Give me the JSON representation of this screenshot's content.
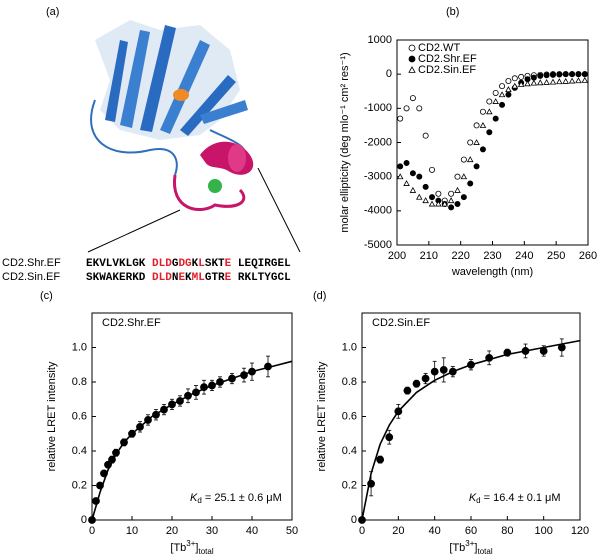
{
  "panel_a": {
    "panel": "(a)",
    "sequences": [
      {
        "name": "CD2.Shr.EF",
        "segments": [
          {
            "text": "EKVLVKLGK ",
            "color": "#000000"
          },
          {
            "text": "DLD",
            "color": "#e0202a"
          },
          {
            "text": "G",
            "color": "#000000"
          },
          {
            "text": "DG",
            "color": "#e0202a"
          },
          {
            "text": "K",
            "color": "#000000"
          },
          {
            "text": "L",
            "color": "#e0202a"
          },
          {
            "text": "SKT",
            "color": "#000000"
          },
          {
            "text": "E",
            "color": "#e0202a"
          },
          {
            "text": " LEQIRGEL",
            "color": "#000000"
          }
        ]
      },
      {
        "name": "CD2.Sin.EF",
        "segments": [
          {
            "text": "SKWAKERKD ",
            "color": "#000000"
          },
          {
            "text": "DLD",
            "color": "#e0202a"
          },
          {
            "text": "N",
            "color": "#000000"
          },
          {
            "text": "E",
            "color": "#e0202a"
          },
          {
            "text": "K",
            "color": "#000000"
          },
          {
            "text": "ML",
            "color": "#e0202a"
          },
          {
            "text": "GTR",
            "color": "#000000"
          },
          {
            "text": "E",
            "color": "#e0202a"
          },
          {
            "text": " RKLTYGCL",
            "color": "#000000"
          }
        ]
      }
    ]
  },
  "chart_data": [
    {
      "type": "scatter",
      "panel": "(b)",
      "xlabel": "wavelength (nm)",
      "ylabel": "molar ellipticity (deg mlo⁻¹ cm² res⁻¹)",
      "xlim": [
        200,
        260
      ],
      "xticks": [
        200,
        210,
        220,
        230,
        240,
        250,
        260
      ],
      "ylim": [
        -5000,
        1000
      ],
      "yticks": [
        -5000,
        -4000,
        -3000,
        -2000,
        -1000,
        0,
        1000
      ],
      "legend": "upper left",
      "series": [
        {
          "name": "CD2.WT",
          "marker": "open-circle",
          "color": "#000000",
          "x": [
            201,
            203,
            205,
            207,
            209,
            211,
            213,
            215,
            217,
            219,
            221,
            223,
            225,
            227,
            229,
            231,
            233,
            235,
            237,
            239,
            241,
            243,
            245,
            247,
            249,
            251,
            253,
            255,
            257,
            259
          ],
          "values": [
            -1300,
            -1000,
            -700,
            -1000,
            -1800,
            -2800,
            -3500,
            -3700,
            -3500,
            -3000,
            -2500,
            -2000,
            -1500,
            -1100,
            -800,
            -550,
            -350,
            -200,
            -120,
            -80,
            -50,
            -30,
            -20,
            -10,
            0,
            0,
            0,
            0,
            0,
            0
          ]
        },
        {
          "name": "CD2.Shr.EF",
          "marker": "filled-circle",
          "color": "#000000",
          "x": [
            201,
            203,
            205,
            207,
            209,
            211,
            213,
            215,
            217,
            219,
            221,
            223,
            225,
            227,
            229,
            231,
            233,
            235,
            237,
            239,
            241,
            243,
            245,
            247,
            249,
            251,
            253,
            255,
            257,
            259
          ],
          "values": [
            -2700,
            -2600,
            -2900,
            -3000,
            -3300,
            -3600,
            -3700,
            -3800,
            -3900,
            -3800,
            -3600,
            -3200,
            -2700,
            -2200,
            -1700,
            -1300,
            -900,
            -600,
            -400,
            -250,
            -150,
            -100,
            -50,
            -30,
            -20,
            -10,
            0,
            0,
            0,
            0
          ]
        },
        {
          "name": "CD2.Sin.EF",
          "marker": "open-triangle",
          "color": "#000000",
          "x": [
            201,
            203,
            205,
            207,
            209,
            211,
            213,
            215,
            217,
            219,
            221,
            223,
            225,
            227,
            229,
            231,
            233,
            235,
            237,
            239,
            241,
            243,
            245,
            247,
            249,
            251,
            253,
            255,
            257,
            259
          ],
          "values": [
            -3000,
            -3200,
            -3400,
            -3600,
            -3700,
            -3800,
            -3800,
            -3800,
            -3700,
            -3400,
            -3000,
            -2500,
            -2000,
            -1500,
            -1100,
            -800,
            -600,
            -450,
            -350,
            -300,
            -280,
            -260,
            -250,
            -240,
            -230,
            -220,
            -210,
            -200,
            -190,
            -180
          ]
        }
      ]
    },
    {
      "type": "scatter",
      "panel": "(c)",
      "label": "CD2.Shr.EF",
      "ylabel": "relative LRET intensity",
      "xlabel_parts": [
        "[Tb",
        "3+",
        "]",
        "total"
      ],
      "annotation_parts": [
        "K",
        "d",
        " = 25.1 ± 0.6 μM"
      ],
      "xlim": [
        0,
        50
      ],
      "xticks": [
        0,
        10,
        20,
        30,
        40,
        50
      ],
      "ylim": [
        0,
        1.2
      ],
      "yticks": [
        0,
        0.2,
        0.4,
        0.6,
        0.8,
        {
          "value": 1,
          "label": "1.0"
        }
      ],
      "series": [
        {
          "marker": "filled-circle",
          "color": "#000000",
          "x": [
            0,
            1,
            2,
            3,
            4,
            5,
            6,
            8,
            10,
            12,
            14,
            16,
            18,
            20,
            22,
            24,
            26,
            28,
            30,
            32,
            35,
            38,
            40,
            44
          ],
          "values": [
            0,
            0.11,
            0.2,
            0.27,
            0.32,
            0.35,
            0.39,
            0.45,
            0.5,
            0.54,
            0.58,
            0.61,
            0.64,
            0.67,
            0.69,
            0.72,
            0.74,
            0.77,
            0.78,
            0.8,
            0.82,
            0.84,
            0.86,
            0.89
          ],
          "errors": [
            0,
            0.01,
            0.01,
            0.01,
            0.01,
            0.02,
            0.02,
            0.02,
            0.02,
            0.03,
            0.03,
            0.03,
            0.03,
            0.03,
            0.03,
            0.04,
            0.04,
            0.04,
            0.03,
            0.03,
            0.03,
            0.04,
            0.05,
            0.06
          ]
        }
      ],
      "fit": {
        "x": [
          0,
          2,
          4,
          6,
          8,
          10,
          15,
          20,
          25,
          30,
          35,
          40,
          45,
          50
        ],
        "values": [
          0,
          0.16,
          0.29,
          0.38,
          0.45,
          0.5,
          0.6,
          0.67,
          0.73,
          0.78,
          0.82,
          0.86,
          0.89,
          0.92
        ]
      }
    },
    {
      "type": "scatter",
      "panel": "(d)",
      "label": "CD2.Sin.EF",
      "ylabel": "relative LRET intensity",
      "xlabel_parts": [
        "[Tb",
        "3+",
        "]",
        "total"
      ],
      "annotation_parts": [
        "K",
        "d",
        " = 16.4 ± 0.1 μM"
      ],
      "xlim": [
        0,
        120
      ],
      "xticks": [
        0,
        20,
        40,
        60,
        80,
        100,
        120
      ],
      "ylim": [
        0,
        1.2
      ],
      "yticks": [
        0,
        0.2,
        0.4,
        0.6,
        0.8,
        {
          "value": 1,
          "label": "1.0"
        }
      ],
      "series": [
        {
          "marker": "filled-circle",
          "color": "#000000",
          "x": [
            0,
            5,
            10,
            15,
            20,
            25,
            30,
            35,
            40,
            45,
            50,
            60,
            70,
            80,
            90,
            100,
            110
          ],
          "values": [
            0,
            0.21,
            0.35,
            0.48,
            0.63,
            0.75,
            0.79,
            0.82,
            0.86,
            0.87,
            0.86,
            0.9,
            0.94,
            0.97,
            0.98,
            0.98,
            1.0
          ],
          "errors": [
            0,
            0.07,
            0.02,
            0.04,
            0.04,
            0.02,
            0.02,
            0.03,
            0.06,
            0.07,
            0.03,
            0.03,
            0.04,
            0.02,
            0.04,
            0.03,
            0.05
          ]
        }
      ],
      "fit": {
        "x": [
          0,
          5,
          10,
          15,
          20,
          30,
          40,
          50,
          60,
          80,
          100,
          120
        ],
        "values": [
          0,
          0.27,
          0.44,
          0.55,
          0.63,
          0.74,
          0.81,
          0.86,
          0.9,
          0.96,
          1.0,
          1.04
        ]
      }
    }
  ]
}
